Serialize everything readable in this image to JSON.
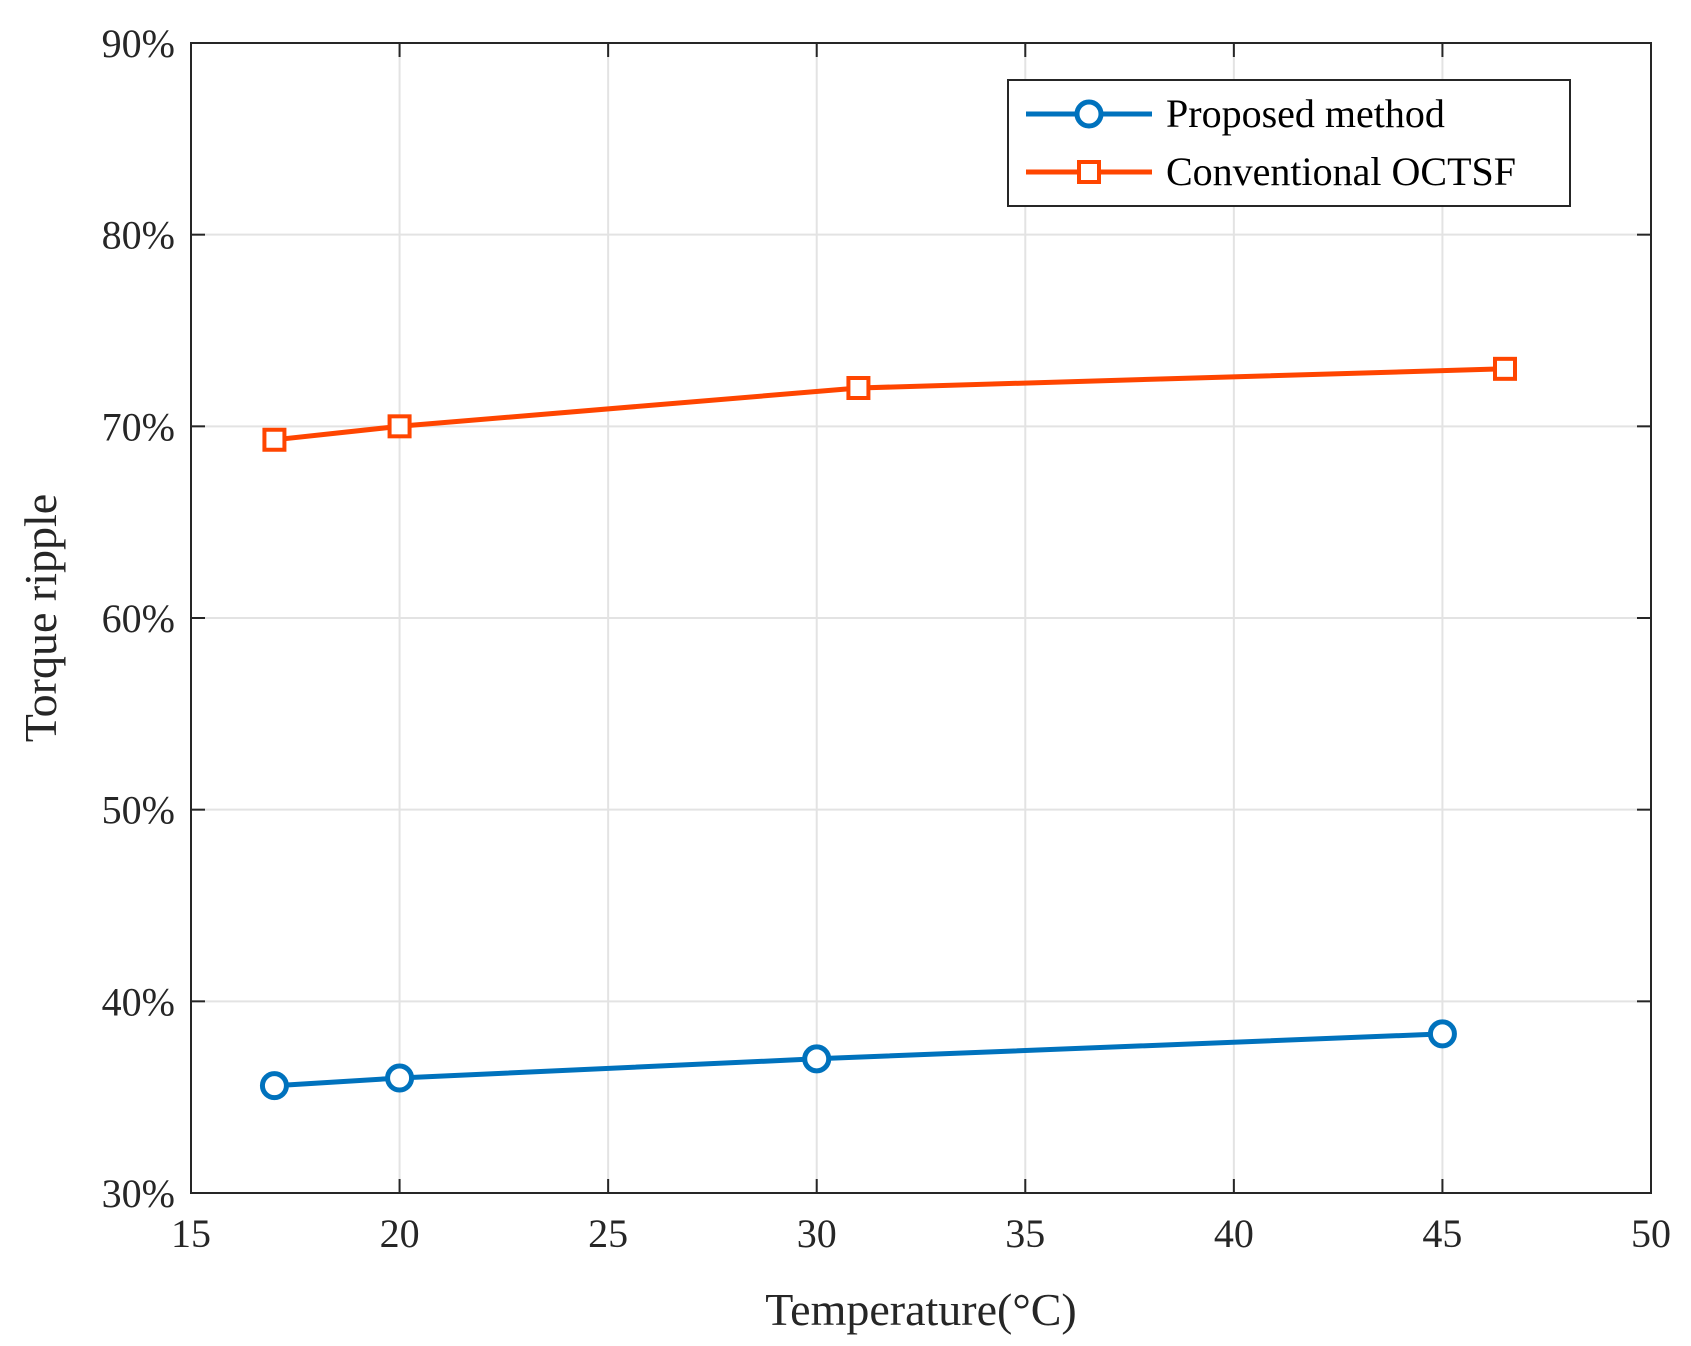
{
  "chart_data": {
    "type": "line",
    "xlabel": "Temperature(°C)",
    "ylabel": "Torque ripple",
    "xlim": [
      15,
      50
    ],
    "ylim": [
      0.3,
      0.9
    ],
    "xticks": [
      15,
      20,
      25,
      30,
      35,
      40,
      45,
      50
    ],
    "xtick_labels": [
      "15",
      "20",
      "25",
      "30",
      "35",
      "40",
      "45",
      "50"
    ],
    "yticks": [
      0.3,
      0.4,
      0.5,
      0.6,
      0.7,
      0.8,
      0.9
    ],
    "ytick_labels": [
      "30%",
      "40%",
      "50%",
      "60%",
      "70%",
      "80%",
      "90%"
    ],
    "grid": true,
    "legend_position": "top-right",
    "series": [
      {
        "name": "Proposed method",
        "color": "#0072BD",
        "marker": "circle",
        "x": [
          17,
          20,
          30,
          45
        ],
        "y": [
          0.356,
          0.36,
          0.37,
          0.383
        ]
      },
      {
        "name": "Conventional OCTSF",
        "color": "#FF4500",
        "marker": "square",
        "x": [
          17,
          20,
          31,
          46.5
        ],
        "y": [
          0.693,
          0.7,
          0.72,
          0.73
        ]
      }
    ]
  }
}
